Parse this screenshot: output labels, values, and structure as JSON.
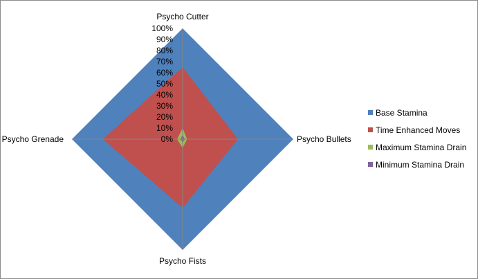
{
  "chart_data": {
    "type": "radar",
    "categories": [
      "Psycho Cutter",
      "Psycho Bullets",
      "Psycho Fists",
      "Psycho Grenade"
    ],
    "series": [
      {
        "name": "Base Stamina",
        "values": [
          100,
          100,
          100,
          100
        ],
        "color": "#4f81bd"
      },
      {
        "name": "Time Enhanced Moves",
        "values": [
          65,
          50,
          62,
          72
        ],
        "color": "#c0504d"
      },
      {
        "name": "Maximum Stamina Drain",
        "values": [
          10,
          4,
          8,
          5
        ],
        "color": "#9bbb59"
      },
      {
        "name": "Minimum Stamina Drain",
        "values": [
          4,
          2,
          3,
          2
        ],
        "color": "#8064a2"
      }
    ],
    "ylim": [
      0,
      100
    ],
    "tick_labels": [
      "0%",
      "10%",
      "20%",
      "30%",
      "40%",
      "50%",
      "60%",
      "70%",
      "80%",
      "90%",
      "100%"
    ],
    "legend_position": "right",
    "grid": false
  }
}
